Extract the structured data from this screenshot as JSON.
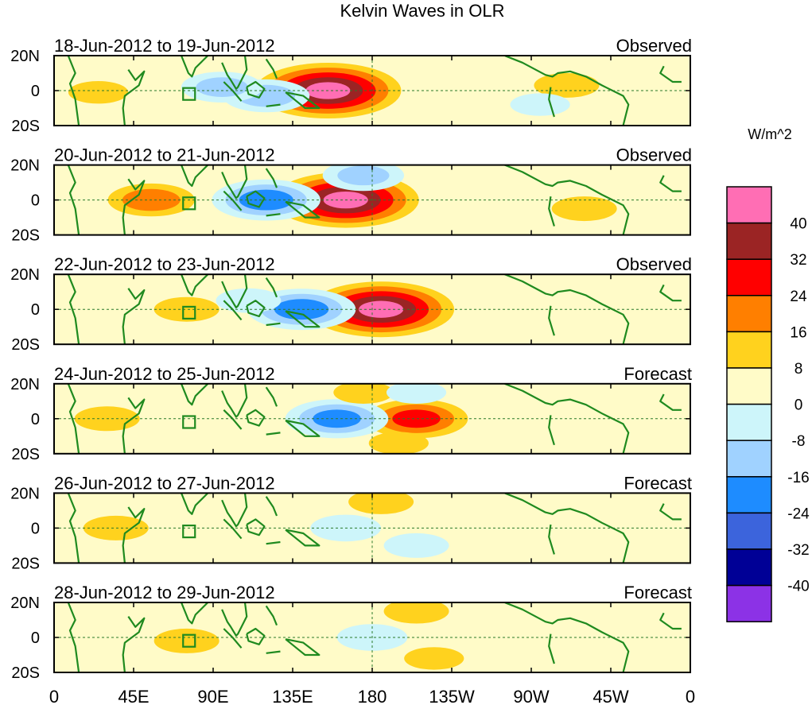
{
  "chart_data": {
    "type": "heatmap",
    "title": "Kelvin Waves in OLR",
    "colorbar": {
      "units": "W/m^2",
      "levels": [
        40,
        32,
        24,
        16,
        8,
        0,
        -8,
        -16,
        -24,
        -32,
        -40
      ],
      "colors": [
        "#ff6eb4",
        "#9b2424",
        "#ff0000",
        "#ff7f00",
        "#ffd21e",
        "#fffbc8",
        "#cdf5fa",
        "#a0d2ff",
        "#1e8cff",
        "#3c64dc",
        "#000096",
        "#8c32e6"
      ]
    },
    "x_ticks": [
      "0",
      "45E",
      "90E",
      "135E",
      "180",
      "135W",
      "90W",
      "45W",
      "0"
    ],
    "y_ticks": [
      "20N",
      "0",
      "20S"
    ],
    "xlim_deg_east": [
      0,
      360
    ],
    "ylim_deg": [
      -20,
      20
    ],
    "panels": [
      {
        "date_range": "18-Jun-2012 to 19-Jun-2012",
        "status": "Observed",
        "anomalies": [
          {
            "lon": 155,
            "lat": 0,
            "value": 40
          },
          {
            "lon": 120,
            "lat": -3,
            "value": -18
          },
          {
            "lon": 95,
            "lat": 2,
            "value": -16
          },
          {
            "lon": 290,
            "lat": 3,
            "value": 10
          },
          {
            "lon": 25,
            "lat": -1,
            "value": 8
          },
          {
            "lon": 275,
            "lat": -8,
            "value": -8
          }
        ]
      },
      {
        "date_range": "20-Jun-2012 to 21-Jun-2012",
        "status": "Observed",
        "anomalies": [
          {
            "lon": 165,
            "lat": 0,
            "value": 40
          },
          {
            "lon": 120,
            "lat": 0,
            "value": -26
          },
          {
            "lon": 55,
            "lat": 0,
            "value": 18
          },
          {
            "lon": 175,
            "lat": 14,
            "value": -16
          },
          {
            "lon": 300,
            "lat": -5,
            "value": 10
          }
        ]
      },
      {
        "date_range": "22-Jun-2012 to 23-Jun-2012",
        "status": "Observed",
        "anomalies": [
          {
            "lon": 185,
            "lat": 0,
            "value": 40
          },
          {
            "lon": 140,
            "lat": 0,
            "value": -26
          },
          {
            "lon": 75,
            "lat": 0,
            "value": 10
          },
          {
            "lon": 110,
            "lat": 5,
            "value": -10
          }
        ]
      },
      {
        "date_range": "24-Jun-2012 to 25-Jun-2012",
        "status": "Forecast",
        "anomalies": [
          {
            "lon": 205,
            "lat": 0,
            "value": 24
          },
          {
            "lon": 160,
            "lat": 0,
            "value": -24
          },
          {
            "lon": 30,
            "lat": 0,
            "value": 10
          },
          {
            "lon": 175,
            "lat": 15,
            "value": 8
          },
          {
            "lon": 205,
            "lat": 15,
            "value": -8
          },
          {
            "lon": 195,
            "lat": -14,
            "value": 8
          }
        ]
      },
      {
        "date_range": "26-Jun-2012 to 27-Jun-2012",
        "status": "Forecast",
        "anomalies": [
          {
            "lon": 165,
            "lat": 0,
            "value": -12
          },
          {
            "lon": 35,
            "lat": 0,
            "value": 10
          },
          {
            "lon": 185,
            "lat": 15,
            "value": 10
          },
          {
            "lon": 205,
            "lat": -10,
            "value": -10
          }
        ]
      },
      {
        "date_range": "28-Jun-2012 to 29-Jun-2012",
        "status": "Forecast",
        "anomalies": [
          {
            "lon": 180,
            "lat": 0,
            "value": -12
          },
          {
            "lon": 75,
            "lat": -2,
            "value": 10
          },
          {
            "lon": 205,
            "lat": 15,
            "value": 10
          },
          {
            "lon": 215,
            "lat": -12,
            "value": 8
          }
        ]
      }
    ]
  }
}
